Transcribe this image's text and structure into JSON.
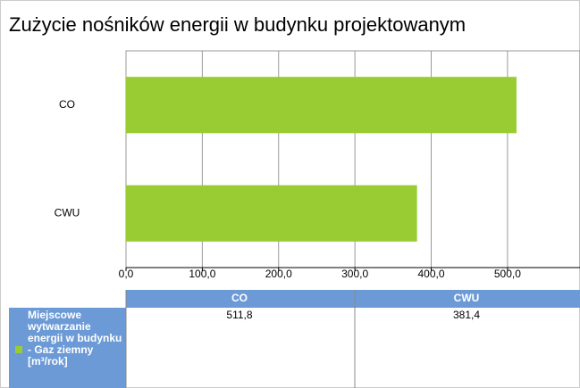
{
  "chart_data": {
    "type": "bar",
    "orientation": "horizontal",
    "title": "Zużycie nośników energii w budynku projektowanym",
    "categories": [
      "CO",
      "CWU"
    ],
    "series": [
      {
        "name": "Miejscowe wytwarzanie energii w budynku - Gaz ziemny [m³/rok]",
        "color": "#99cc33",
        "values": [
          511.8,
          381.4
        ],
        "value_labels": [
          "511,8",
          "381,4"
        ]
      }
    ],
    "xlim": [
      0,
      595
    ],
    "xticks": [
      {
        "value": 0,
        "label": "0,0"
      },
      {
        "value": 100,
        "label": "100,0"
      },
      {
        "value": 200,
        "label": "200,0"
      },
      {
        "value": 300,
        "label": "300,0"
      },
      {
        "value": 400,
        "label": "400,0"
      },
      {
        "value": 500,
        "label": "500,0"
      }
    ],
    "grid": true
  }
}
